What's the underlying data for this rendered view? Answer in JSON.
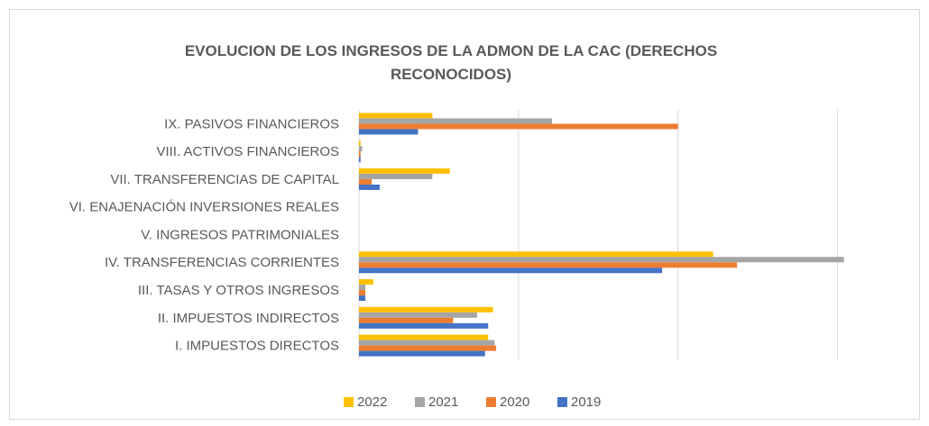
{
  "chart_data": {
    "type": "bar",
    "orientation": "horizontal",
    "title": "EVOLUCION DE LOS INGRESOS DE LA ADMON DE LA CAC (DERECHOS RECONOCIDOS)",
    "categories": [
      "I. IMPUESTOS DIRECTOS",
      "II. IMPUESTOS INDIRECTOS",
      "III. TASAS Y OTROS INGRESOS",
      "IV. TRANSFERENCIAS CORRIENTES",
      "V. INGRESOS PATRIMONIALES",
      "VI. ENAJENACIÓN INVERSIONES REALES",
      "VII. TRANSFERENCIAS DE CAPITAL",
      "VIII. ACTIVOS FINANCIEROS",
      "IX. PASIVOS FINANCIEROS"
    ],
    "series": [
      {
        "name": "2022",
        "color": "#ffc000",
        "values": [
          0.81,
          0.84,
          0.09,
          2.22,
          0,
          0,
          0.57,
          0.01,
          0.46
        ]
      },
      {
        "name": "2021",
        "color": "#a5a5a5",
        "values": [
          0.85,
          0.74,
          0.04,
          3.04,
          0,
          0,
          0.46,
          0.02,
          1.21
        ]
      },
      {
        "name": "2020",
        "color": "#ed7d31",
        "values": [
          0.86,
          0.59,
          0.04,
          2.37,
          0,
          0,
          0.08,
          0.01,
          2.0
        ]
      },
      {
        "name": "2019",
        "color": "#4472c4",
        "values": [
          0.79,
          0.81,
          0.04,
          1.9,
          0,
          0,
          0.13,
          0.01,
          0.37
        ]
      }
    ],
    "xlim": [
      0,
      3.2
    ],
    "xticks": [
      0,
      1,
      2,
      3
    ],
    "grid": true,
    "legend": "bottom"
  }
}
